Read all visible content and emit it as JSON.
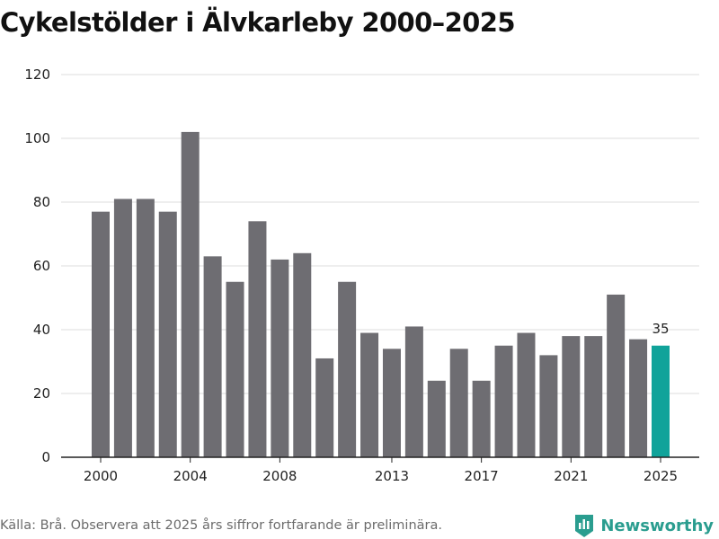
{
  "page": {
    "title": "Cykelstölder i Älvkarleby 2000–2025",
    "source": "Källa: Brå. Observera att 2025 års siffror fortfarande är preliminära.",
    "brand": "Newsworthy"
  },
  "colors": {
    "bar": "#6e6d72",
    "highlight": "#10a39a",
    "grid": "#dddddd",
    "brand": "#2a9d8f"
  },
  "chart_data": {
    "type": "bar",
    "title": "Cykelstölder i Älvkarleby 2000–2025",
    "xlabel": "",
    "ylabel": "",
    "categories": [
      "2000",
      "2001",
      "2002",
      "2003",
      "2004",
      "2005",
      "2006",
      "2007",
      "2008",
      "2009",
      "2010",
      "2011",
      "2012",
      "2013",
      "2014",
      "2015",
      "2016",
      "2017",
      "2018",
      "2019",
      "2020",
      "2021",
      "2022",
      "2023",
      "2024",
      "2025"
    ],
    "values": [
      77,
      81,
      81,
      77,
      102,
      63,
      55,
      74,
      62,
      64,
      31,
      55,
      39,
      34,
      41,
      24,
      34,
      24,
      35,
      39,
      32,
      38,
      38,
      51,
      37,
      35
    ],
    "highlight_index": 25,
    "highlight_label": "35",
    "ylim": [
      0,
      120
    ],
    "yticks": [
      0,
      20,
      40,
      60,
      80,
      100,
      120
    ],
    "xticks": [
      "2000",
      "2004",
      "2008",
      "2013",
      "2017",
      "2021",
      "2025"
    ],
    "grid": true
  }
}
